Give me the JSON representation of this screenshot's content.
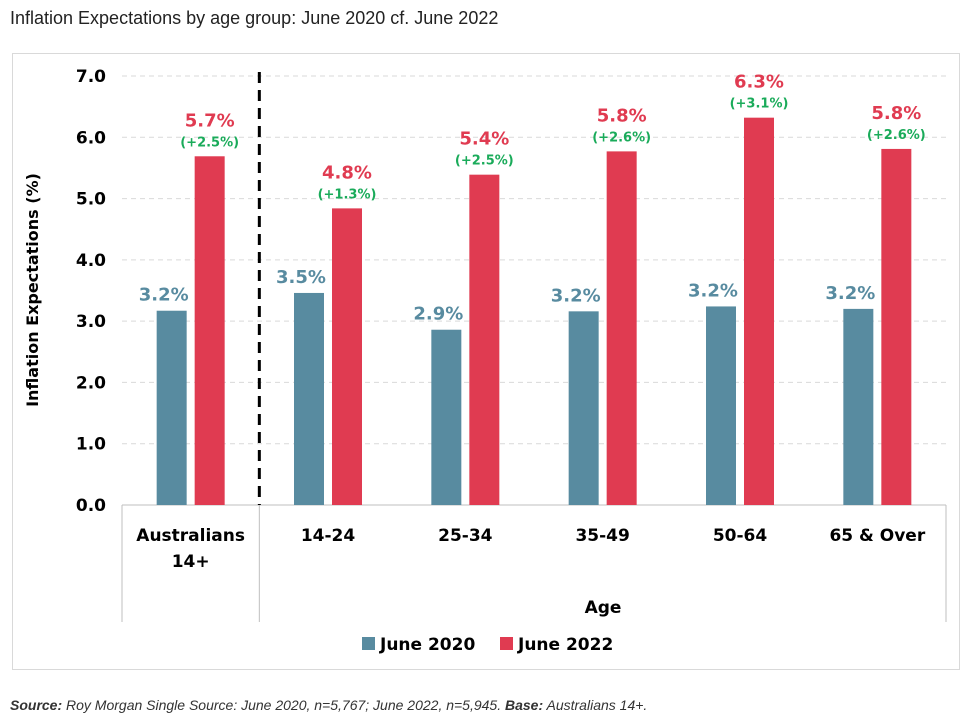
{
  "title": "Inflation Expectations by age group: June 2020 cf. June 2022",
  "source": {
    "label": "Source:",
    "text": " Roy Morgan Single Source: June 2020, n=5,767; June 2022, n=5,945. ",
    "base_label": "Base:",
    "base_text": " Australians 14+."
  },
  "chart_data": {
    "type": "bar",
    "title": "",
    "xlabel": "Age",
    "ylabel": "Inflation Expectations (%)",
    "ylim": [
      0,
      7
    ],
    "yticks": [
      "0.0",
      "1.0",
      "2.0",
      "3.0",
      "4.0",
      "5.0",
      "6.0",
      "7.0"
    ],
    "grid": true,
    "legend_position": "bottom",
    "categories": [
      [
        "Australians",
        "14+"
      ],
      [
        "14-24"
      ],
      [
        "25-34"
      ],
      [
        "35-49"
      ],
      [
        "50-64"
      ],
      [
        "65 & Over"
      ]
    ],
    "series": [
      {
        "name": "June 2020",
        "color": "#588ba0",
        "values": [
          3.17,
          3.46,
          2.86,
          3.16,
          3.24,
          3.2
        ],
        "labels": [
          "3.2%",
          "3.5%",
          "2.9%",
          "3.2%",
          "3.2%",
          "3.2%"
        ]
      },
      {
        "name": "June 2022",
        "color": "#e03b51",
        "values": [
          5.69,
          4.84,
          5.39,
          5.77,
          6.32,
          5.81
        ],
        "labels": [
          "5.7%",
          "4.8%",
          "5.4%",
          "5.8%",
          "6.3%",
          "5.8%"
        ],
        "change_labels": [
          "(+2.5%)",
          "(+1.3%)",
          "(+2.5%)",
          "(+2.6%)",
          "(+3.1%)",
          "(+2.6%)"
        ],
        "change_color": "#1aab5a"
      }
    ]
  }
}
